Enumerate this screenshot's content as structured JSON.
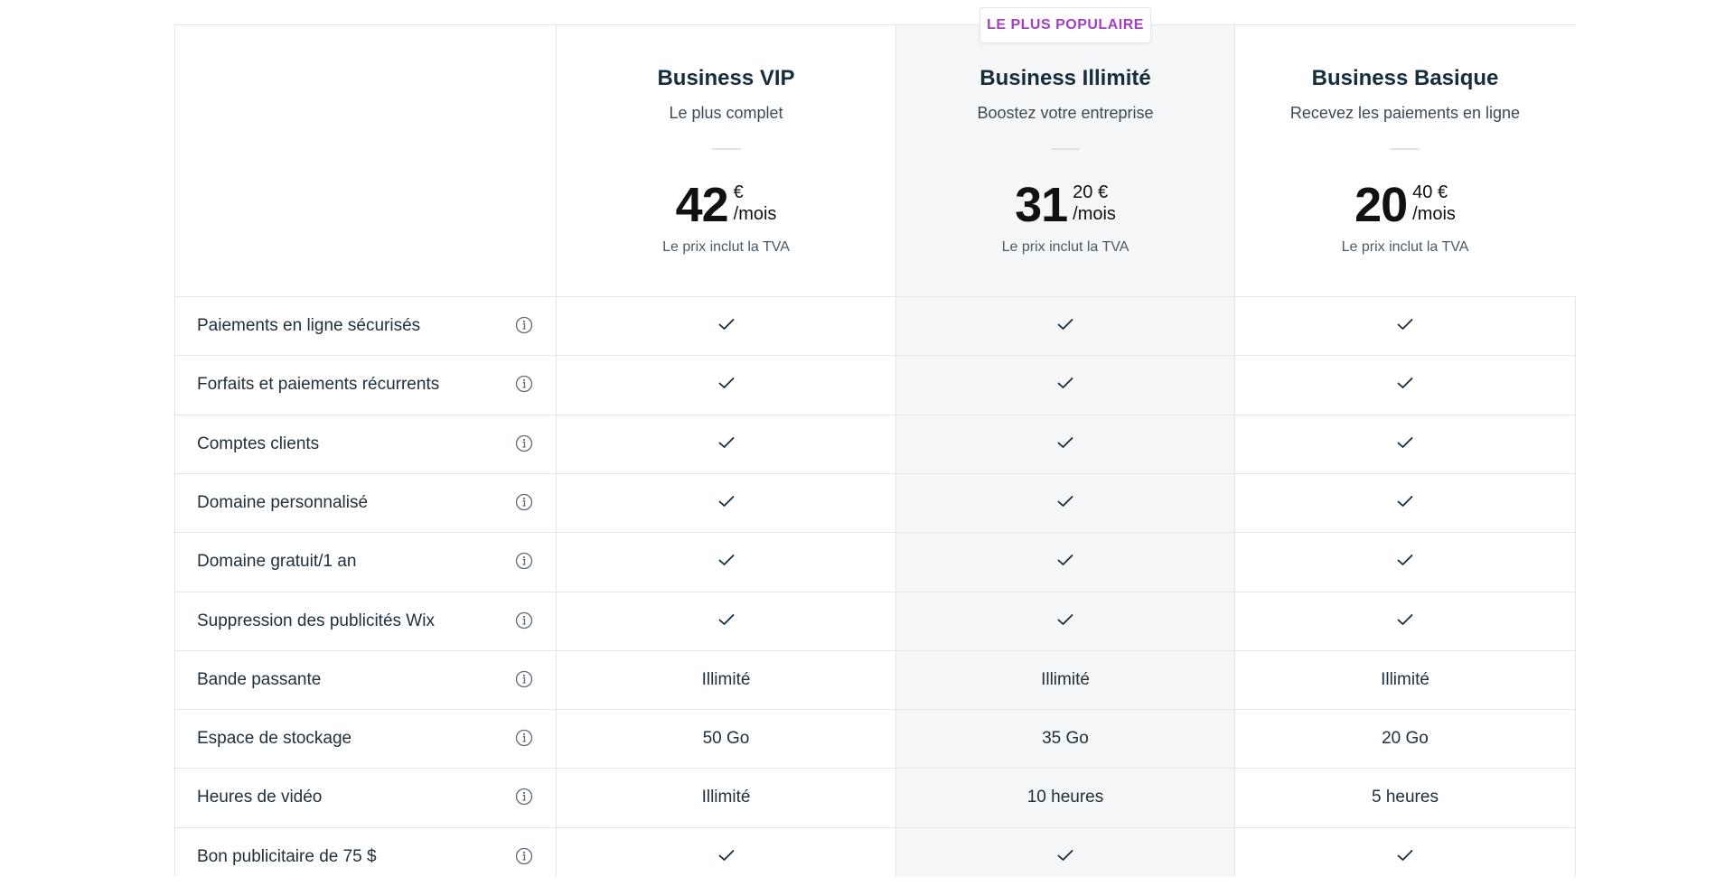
{
  "badge": "LE PLUS POPULAIRE",
  "plans": [
    {
      "name": "Business VIP",
      "tagline": "Le plus complet",
      "price_int": "42",
      "price_frac": "€",
      "per": "/mois",
      "vat": "Le prix inclut la TVA"
    },
    {
      "name": "Business Illimité",
      "tagline": "Boostez votre entreprise",
      "price_int": "31",
      "price_frac": "20 €",
      "per": "/mois",
      "vat": "Le prix inclut la TVA"
    },
    {
      "name": "Business Basique",
      "tagline": "Recevez les paiements en ligne",
      "price_int": "20",
      "price_frac": "40 €",
      "per": "/mois",
      "vat": "Le prix inclut la TVA"
    }
  ],
  "features": [
    {
      "label": "Paiements en ligne sécurisés",
      "values": [
        "check",
        "check",
        "check"
      ]
    },
    {
      "label": "Forfaits et paiements récurrents",
      "values": [
        "check",
        "check",
        "check"
      ]
    },
    {
      "label": "Comptes clients",
      "values": [
        "check",
        "check",
        "check"
      ]
    },
    {
      "label": "Domaine personnalisé",
      "values": [
        "check",
        "check",
        "check"
      ]
    },
    {
      "label": "Domaine gratuit/1 an",
      "values": [
        "check",
        "check",
        "check"
      ]
    },
    {
      "label": "Suppression des publicités Wix",
      "values": [
        "check",
        "check",
        "check"
      ]
    },
    {
      "label": "Bande passante",
      "values": [
        "Illimité",
        "Illimité",
        "Illimité"
      ]
    },
    {
      "label": "Espace de stockage",
      "values": [
        "50 Go",
        "35 Go",
        "20 Go"
      ]
    },
    {
      "label": "Heures de vidéo",
      "values": [
        "Illimité",
        "10 heures",
        "5 heures"
      ]
    },
    {
      "label": "Bon publicitaire de 75 $",
      "values": [
        "check",
        "check",
        "check"
      ]
    }
  ],
  "icons": {
    "info": "info-icon",
    "check": "check-icon"
  },
  "colors": {
    "badge_text": "#a43ec2",
    "highlight_bg": "#f5f6f7",
    "border": "#e3e5e8"
  }
}
